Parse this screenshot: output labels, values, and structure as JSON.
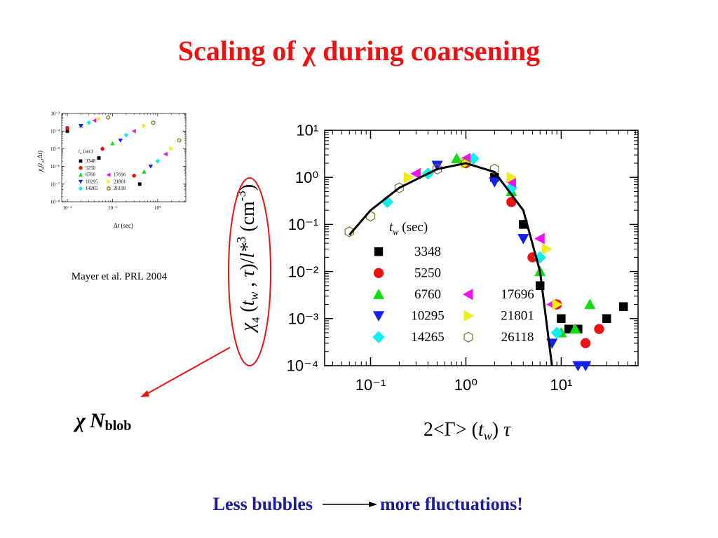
{
  "title": "Scaling of χ during coarsening",
  "citation": "Mayer et al. PRL 2004",
  "annotation": [
    "χ",
    "N",
    "blob"
  ],
  "footer": {
    "left": "Less bubbles",
    "right": "more fluctuations!"
  },
  "chart_data": [
    {
      "type": "scatter",
      "log_x": true,
      "log_y": true,
      "x_label": [
        "2<Γ> (",
        "t",
        "w",
        ") ",
        "τ"
      ],
      "y_label": [
        "χ",
        "4",
        " (",
        "t",
        "w",
        " , ",
        "τ",
        ")/",
        "l*",
        "3",
        " (cm",
        "-3",
        ")"
      ],
      "legend_title": [
        "t",
        "w",
        " (sec)"
      ],
      "xlim": [
        0.033,
        64
      ],
      "ylim": [
        0.0001,
        10
      ],
      "xticks": [
        {
          "value": 0.1,
          "label": "10⁻¹"
        },
        {
          "value": 1,
          "label": "10⁰"
        },
        {
          "value": 10,
          "label": "10¹"
        }
      ],
      "yticks": [
        {
          "value": 0.0001,
          "label": "10⁻⁴"
        },
        {
          "value": 0.001,
          "label": "10⁻³"
        },
        {
          "value": 0.01,
          "label": "10⁻²"
        },
        {
          "value": 0.1,
          "label": "10⁻¹"
        },
        {
          "value": 1,
          "label": "10⁰"
        },
        {
          "value": 10,
          "label": "10¹"
        }
      ],
      "curve": {
        "color": "#000000",
        "x": [
          0.06,
          0.1,
          0.2,
          0.5,
          1,
          2,
          4,
          6,
          8
        ],
        "y": [
          0.06,
          0.2,
          0.6,
          1.5,
          2,
          1.3,
          0.2,
          0.01,
          0.0001
        ]
      },
      "series": [
        {
          "name": "3348",
          "color": "#000000",
          "marker": "square",
          "filled": true,
          "x": [
            2,
            4,
            6,
            10,
            12,
            15,
            30,
            45
          ],
          "y": [
            1.0,
            0.1,
            0.005,
            0.001,
            0.0006,
            0.0006,
            0.001,
            0.0018
          ]
        },
        {
          "name": "5250",
          "color": "#ee1111",
          "marker": "circle",
          "filled": true,
          "x": [
            1,
            3,
            5,
            9,
            18,
            25
          ],
          "y": [
            2,
            0.3,
            0.02,
            0.002,
            0.0003,
            0.0006
          ]
        },
        {
          "name": "6760",
          "color": "#11dd11",
          "marker": "triangle-up",
          "filled": true,
          "x": [
            0.8,
            3,
            6,
            10,
            14,
            20
          ],
          "y": [
            2.5,
            0.5,
            0.01,
            0.0005,
            0.0006,
            0.002
          ]
        },
        {
          "name": "10295",
          "color": "#1122ee",
          "marker": "triangle-down",
          "filled": true,
          "x": [
            0.5,
            2,
            4,
            8,
            15,
            18
          ],
          "y": [
            1.8,
            0.8,
            0.05,
            0.0003,
            0.0001,
            0.0001
          ]
        },
        {
          "name": "14265",
          "color": "#11eeee",
          "marker": "diamond",
          "filled": true,
          "x": [
            0.15,
            0.4,
            1.2,
            3,
            6,
            9
          ],
          "y": [
            0.3,
            1.2,
            2.5,
            0.6,
            0.02,
            0.0005
          ]
        },
        {
          "name": "17696",
          "color": "#ee11ee",
          "marker": "triangle-left",
          "filled": true,
          "x": [
            0.3,
            1,
            3,
            6,
            8
          ],
          "y": [
            1.2,
            2.5,
            0.8,
            0.05,
            0.002
          ]
        },
        {
          "name": "21801",
          "color": "#eeee11",
          "marker": "triangle-right",
          "filled": true,
          "x": [
            0.25,
            1,
            3,
            7,
            9
          ],
          "y": [
            1,
            2,
            1,
            0.03,
            0.002
          ]
        },
        {
          "name": "26118",
          "color": "#807020",
          "marker": "hexagon",
          "filled": false,
          "x": [
            0.06,
            0.1,
            0.2,
            0.5,
            1,
            2
          ],
          "y": [
            0.07,
            0.15,
            0.6,
            1.5,
            2,
            1.5
          ]
        }
      ]
    },
    {
      "type": "scatter",
      "log_x": true,
      "log_y": true,
      "x_label": [
        "Δ",
        "t",
        "  (sec)"
      ],
      "y_label": [
        "χ",
        "4",
        "(",
        "t",
        "w",
        ",Δ",
        "t",
        ")"
      ],
      "legend_title": [
        "t",
        "w",
        " (sec)"
      ],
      "xlim": [
        0.0075,
        4.2
      ],
      "ylim": [
        1e-08,
        0.001
      ],
      "xticks": [
        {
          "value": 0.01,
          "label": "10⁻²"
        },
        {
          "value": 0.1,
          "label": "10⁻¹"
        },
        {
          "value": 1,
          "label": "10⁰"
        }
      ],
      "yticks": [
        {
          "value": 1e-08,
          "label": "10⁻⁸"
        },
        {
          "value": 1e-07,
          "label": "10⁻⁷"
        },
        {
          "value": 1e-06,
          "label": "10⁻⁶"
        },
        {
          "value": 1e-05,
          "label": "10⁻⁵"
        },
        {
          "value": 0.0001,
          "label": "10⁻⁴"
        },
        {
          "value": 0.001,
          "label": "10⁻³"
        }
      ],
      "series": [
        {
          "name": "3348",
          "color": "#000000",
          "marker": "square",
          "filled": true,
          "x": [
            0.01,
            0.05,
            0.4
          ],
          "y": [
            0.0001,
            3e-06,
            1e-07
          ]
        },
        {
          "name": "5250",
          "color": "#ee1111",
          "marker": "circle",
          "filled": true,
          "x": [
            0.01,
            0.06,
            0.3
          ],
          "y": [
            0.00015,
            1e-05,
            3e-07
          ]
        },
        {
          "name": "6760",
          "color": "#11dd11",
          "marker": "triangle-up",
          "filled": true,
          "x": [
            0.02,
            0.1,
            0.5
          ],
          "y": [
            0.0002,
            2e-05,
            5e-07
          ]
        },
        {
          "name": "10295",
          "color": "#1122ee",
          "marker": "triangle-down",
          "filled": true,
          "x": [
            0.02,
            0.15,
            0.7
          ],
          "y": [
            0.0002,
            3e-05,
            1e-06
          ]
        },
        {
          "name": "14265",
          "color": "#11eeee",
          "marker": "diamond",
          "filled": true,
          "x": [
            0.03,
            0.2,
            1
          ],
          "y": [
            0.0003,
            6e-05,
            2e-06
          ]
        },
        {
          "name": "17696",
          "color": "#ee11ee",
          "marker": "triangle-left",
          "filled": true,
          "x": [
            0.04,
            0.3,
            1.5
          ],
          "y": [
            0.0004,
            0.0001,
            5e-06
          ]
        },
        {
          "name": "21801",
          "color": "#eeee11",
          "marker": "triangle-right",
          "filled": true,
          "x": [
            0.05,
            0.5,
            2
          ],
          "y": [
            0.0005,
            0.0002,
            1e-05
          ]
        },
        {
          "name": "26118",
          "color": "#807020",
          "marker": "hexagon",
          "filled": false,
          "x": [
            0.08,
            0.8,
            3
          ],
          "y": [
            0.0006,
            0.0003,
            3e-05
          ]
        }
      ]
    }
  ]
}
